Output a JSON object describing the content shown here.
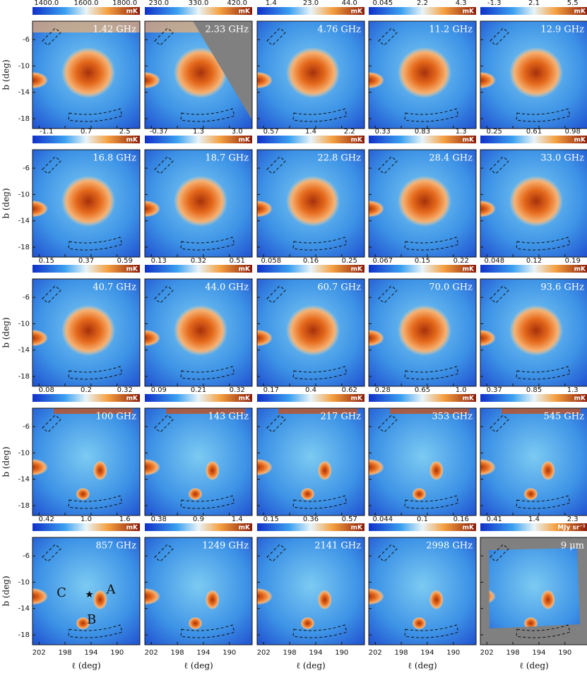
{
  "chart_data": {
    "type": "map-grid",
    "xlabel": "ℓ (deg)",
    "ylabel": "b (deg)",
    "xlim": [
      203,
      186.5
    ],
    "ylim": [
      -19.5,
      -3.2
    ],
    "xticks": [
      202,
      198,
      194,
      190
    ],
    "yticks": [
      -6,
      -10,
      -14,
      -18
    ],
    "panels": [
      {
        "label": "1.42 GHz",
        "unit": "mK",
        "ticks": [
          {
            "value": 1400,
            "label": "1400.0"
          },
          {
            "value": 1600,
            "label": "1600.0"
          },
          {
            "value": 1800,
            "label": "1800.0"
          }
        ]
      },
      {
        "label": "2.33 GHz",
        "unit": "mK",
        "ticks": [
          {
            "value": 230,
            "label": "230.0"
          },
          {
            "value": 330,
            "label": "330.0"
          },
          {
            "value": 420,
            "label": "420.0"
          }
        ]
      },
      {
        "label": "4.76 GHz",
        "unit": "mK",
        "ticks": [
          1.4,
          {
            "value": 23,
            "label": "23.0"
          },
          {
            "value": 44,
            "label": "44.0"
          }
        ]
      },
      {
        "label": "11.2 GHz",
        "unit": "mK",
        "ticks": [
          0.045,
          2.2,
          4.3
        ]
      },
      {
        "label": "12.9 GHz",
        "unit": "mK",
        "ticks": [
          -1.3,
          2.1,
          5.5
        ]
      },
      {
        "label": "16.8 GHz",
        "unit": "mK",
        "ticks": [
          -1.1,
          0.7,
          2.5
        ]
      },
      {
        "label": "18.7 GHz",
        "unit": "mK",
        "ticks": [
          -0.37,
          1.3,
          {
            "value": 3,
            "label": "3.0"
          }
        ]
      },
      {
        "label": "22.8 GHz",
        "unit": "mK",
        "ticks": [
          0.57,
          1.4,
          2.2
        ]
      },
      {
        "label": "28.4 GHz",
        "unit": "mK",
        "ticks": [
          0.33,
          0.83,
          1.3
        ]
      },
      {
        "label": "33.0 GHz",
        "unit": "mK",
        "ticks": [
          0.25,
          0.61,
          0.98
        ]
      },
      {
        "label": "40.7 GHz",
        "unit": "mK",
        "ticks": [
          0.15,
          0.37,
          0.59
        ]
      },
      {
        "label": "44.0 GHz",
        "unit": "mK",
        "ticks": [
          0.13,
          0.32,
          0.51
        ]
      },
      {
        "label": "60.7 GHz",
        "unit": "mK",
        "ticks": [
          0.058,
          0.16,
          0.25
        ]
      },
      {
        "label": "70.0 GHz",
        "unit": "mK",
        "ticks": [
          0.067,
          0.15,
          0.22
        ]
      },
      {
        "label": "93.6 GHz",
        "unit": "mK",
        "ticks": [
          0.048,
          0.12,
          0.19
        ]
      },
      {
        "label": "100 GHz",
        "unit": "mK",
        "ticks": [
          0.08,
          0.2,
          0.32
        ]
      },
      {
        "label": "143 GHz",
        "unit": "mK",
        "ticks": [
          0.09,
          0.21,
          0.32
        ]
      },
      {
        "label": "217 GHz",
        "unit": "mK",
        "ticks": [
          0.17,
          0.4,
          0.62
        ]
      },
      {
        "label": "353 GHz",
        "unit": "mK",
        "ticks": [
          0.28,
          0.65,
          {
            "value": 1,
            "label": "1.0"
          }
        ]
      },
      {
        "label": "545 GHz",
        "unit": "mK",
        "ticks": [
          0.37,
          0.85,
          1.3
        ]
      },
      {
        "label": "857 GHz",
        "unit": "mK",
        "ticks": [
          0.42,
          {
            "value": 1,
            "label": "1.0"
          },
          1.6
        ],
        "annotations": [
          "C",
          "A",
          "B"
        ]
      },
      {
        "label": "1249 GHz",
        "unit": "mK",
        "ticks": [
          0.38,
          0.9,
          1.4
        ]
      },
      {
        "label": "2141 GHz",
        "unit": "mK",
        "ticks": [
          0.15,
          0.36,
          0.57
        ]
      },
      {
        "label": "2998 GHz",
        "unit": "mK",
        "ticks": [
          0.044,
          0.1,
          0.16
        ]
      },
      {
        "label": "9 μm",
        "unit": "MJy sr⁻¹",
        "ticks": [
          0.41,
          1.4,
          2.3
        ]
      }
    ]
  }
}
